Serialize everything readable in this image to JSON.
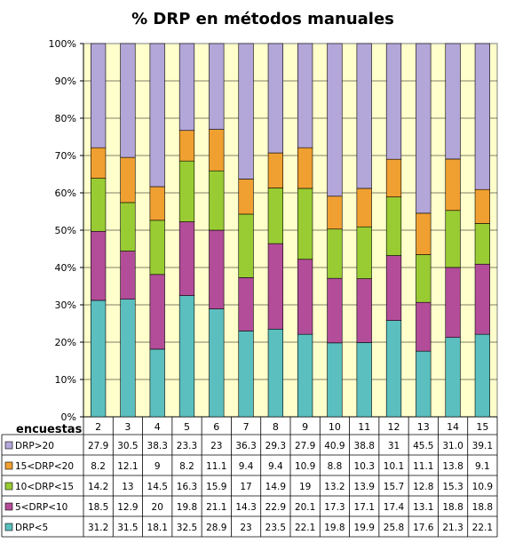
{
  "chart_data": {
    "type": "bar",
    "stacked": "percent",
    "title": "% DRP en métodos manuales",
    "table_corner_label": "encuestas",
    "categories": [
      "2",
      "3",
      "4",
      "5",
      "6",
      "7",
      "8",
      "9",
      "10",
      "11",
      "12",
      "13",
      "14",
      "15"
    ],
    "y_ticks": [
      "0%",
      "10%",
      "20%",
      "30%",
      "40%",
      "50%",
      "60%",
      "70%",
      "80%",
      "90%",
      "100%"
    ],
    "ylim": [
      0,
      100
    ],
    "plot_background": "#FFFFCC",
    "series": [
      {
        "name": "DRP<5",
        "color": "#5BBFBF",
        "values": [
          "31.2",
          "31.5",
          "18.1",
          "32.5",
          "28.9",
          "23",
          "23.5",
          "22.1",
          "19.8",
          "19.9",
          "25.8",
          "17.6",
          "21.3",
          "22.1"
        ]
      },
      {
        "name": "5<DRP<10",
        "color": "#B34D99",
        "values": [
          "18.5",
          "12.9",
          "20",
          "19.8",
          "21.1",
          "14.3",
          "22.9",
          "20.1",
          "17.3",
          "17.1",
          "17.4",
          "13.1",
          "18.8",
          "18.8"
        ]
      },
      {
        "name": "10<DRP<15",
        "color": "#99CC33",
        "values": [
          "14.2",
          "13",
          "14.5",
          "16.3",
          "15.9",
          "17",
          "14.9",
          "19",
          "13.2",
          "13.9",
          "15.7",
          "12.8",
          "15.3",
          "10.9"
        ]
      },
      {
        "name": "15<DRP<20",
        "color": "#F0A030",
        "values": [
          "8.2",
          "12.1",
          "9",
          "8.2",
          "11.1",
          "9.4",
          "9.4",
          "10.9",
          "8.8",
          "10.3",
          "10.1",
          "11.1",
          "13.8",
          "9.1"
        ]
      },
      {
        "name": "DRP>20",
        "color": "#B3A6D9",
        "values": [
          "27.9",
          "30.5",
          "38.3",
          "23.3",
          "23",
          "36.3",
          "29.3",
          "27.9",
          "40.9",
          "38.8",
          "31",
          "45.5",
          "31.0",
          "39.1"
        ]
      }
    ]
  }
}
